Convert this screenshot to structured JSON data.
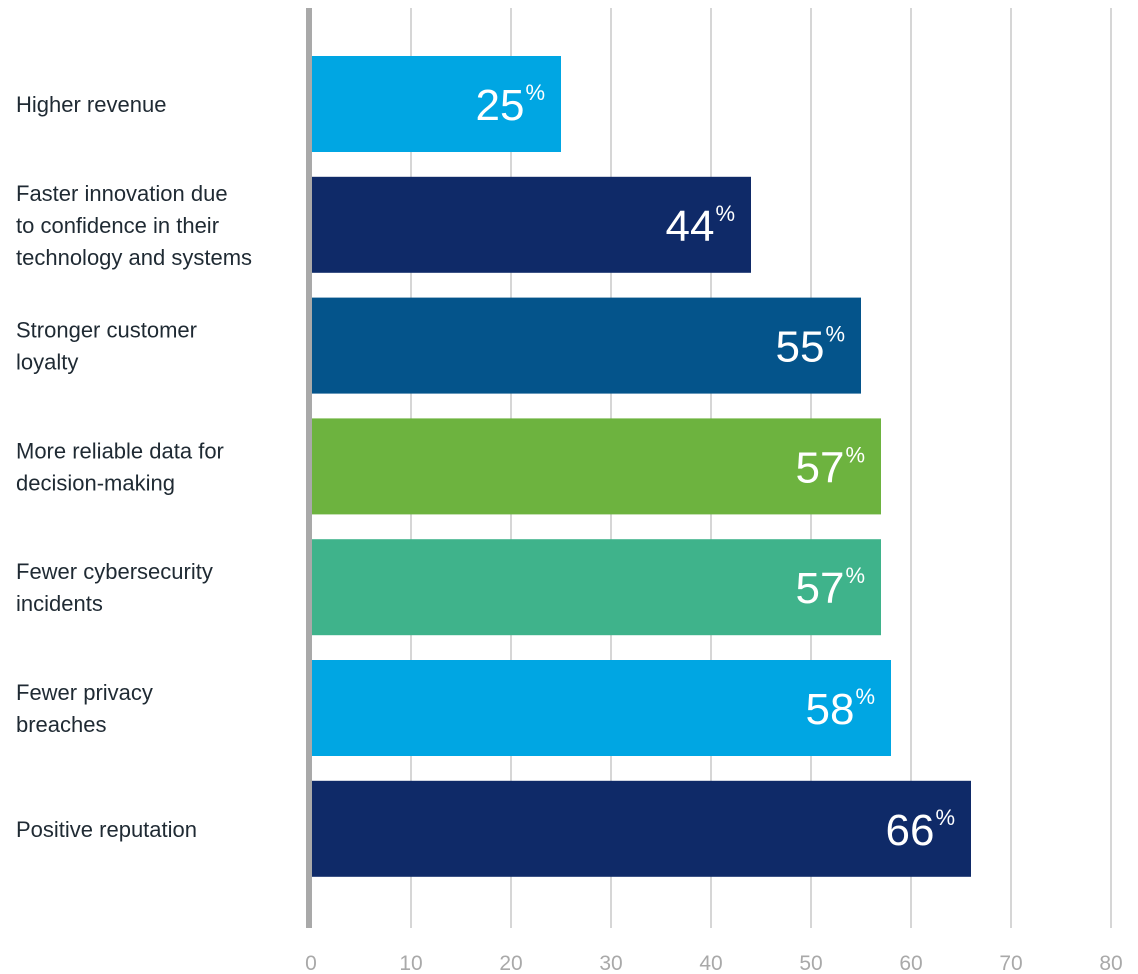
{
  "chart_data": {
    "type": "bar",
    "orientation": "horizontal",
    "categories": [
      [
        "Higher revenue"
      ],
      [
        "Faster innovation due",
        "to confidence in their",
        "technology and systems"
      ],
      [
        "Stronger customer",
        "loyalty"
      ],
      [
        "More reliable data for",
        "decision-making"
      ],
      [
        "Fewer cybersecurity",
        "incidents"
      ],
      [
        "Fewer privacy",
        "breaches"
      ],
      [
        "Positive reputation"
      ]
    ],
    "values": [
      25,
      44,
      55,
      57,
      57,
      58,
      66
    ],
    "value_suffix": "%",
    "bar_colors": [
      "#00a6e3",
      "#0f2a68",
      "#04548b",
      "#6db33f",
      "#3fb38b",
      "#00a6e3",
      "#0f2a68"
    ],
    "xlim": [
      0,
      80
    ],
    "xticks": [
      0,
      10,
      20,
      30,
      40,
      50,
      60,
      70,
      80
    ],
    "grid": true,
    "legend": false,
    "title": "",
    "xlabel": "",
    "ylabel": "",
    "colors": {
      "grid": "#c8c8c8",
      "axis": "#a9a9a9",
      "label_text": "#1f2a33",
      "tick_text": "#a9a9a9",
      "value_text": "#ffffff"
    }
  }
}
